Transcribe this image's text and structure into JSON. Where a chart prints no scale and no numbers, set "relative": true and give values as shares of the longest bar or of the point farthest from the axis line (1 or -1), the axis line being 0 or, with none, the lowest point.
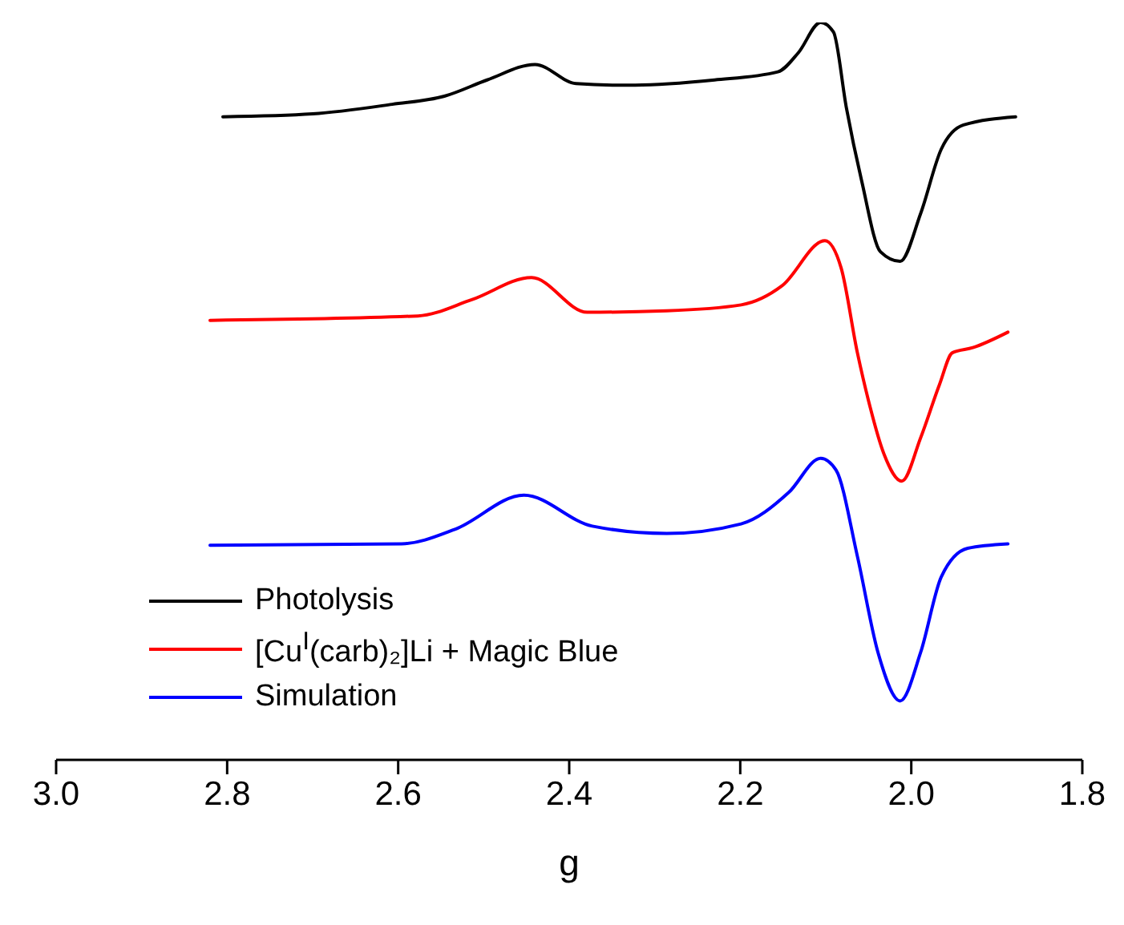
{
  "chart_data": {
    "type": "line",
    "xlabel": "g",
    "relative": true,
    "xlim": [
      3.0,
      1.8
    ],
    "xticks": [
      {
        "value": 3.0,
        "label": "3.0"
      },
      {
        "value": 2.8,
        "label": "2.8"
      },
      {
        "value": 2.6,
        "label": "2.6"
      },
      {
        "value": 2.4,
        "label": "2.4"
      },
      {
        "value": 2.2,
        "label": "2.2"
      },
      {
        "value": 2.0,
        "label": "2.0"
      },
      {
        "value": 1.8,
        "label": "1.8"
      }
    ],
    "legend": "bottom left",
    "grid": false,
    "marker": "none",
    "line_style": "solid",
    "series": [
      {
        "name": "Photolysis",
        "color": "#000000",
        "x": [
          2.805,
          2.7,
          2.607,
          2.546,
          2.496,
          2.44,
          2.392,
          2.342,
          2.323,
          2.23,
          2.156,
          2.132,
          2.106,
          2.091,
          2.076,
          2.058,
          2.036,
          2.013,
          1.989,
          1.965,
          1.939,
          1.878
        ],
        "values": [
          0.872,
          0.876,
          0.889,
          0.9,
          0.922,
          0.943,
          0.917,
          0.915,
          0.915,
          0.922,
          0.933,
          0.959,
          1,
          0.987,
          0.885,
          0.785,
          0.689,
          0.676,
          0.741,
          0.828,
          0.861,
          0.872
        ]
      },
      {
        "name": "[Cu$^{I}$(carb)₂]Li + Magic Blue",
        "color": "#ff0000",
        "x": [
          2.82,
          2.577,
          2.514,
          2.444,
          2.379,
          2.286,
          2.199,
          2.151,
          2.101,
          2.082,
          2.063,
          2.05,
          2.032,
          2.011,
          1.989,
          1.967,
          1.952,
          1.928,
          1.887
        ],
        "values": [
          0.596,
          0.602,
          0.624,
          0.654,
          0.607,
          0.609,
          0.617,
          0.643,
          0.704,
          0.667,
          0.552,
          0.487,
          0.415,
          0.378,
          0.437,
          0.509,
          0.552,
          0.559,
          0.58
        ]
      },
      {
        "name": "Simulation",
        "color": "#0000ff",
        "x": [
          2.82,
          2.596,
          2.533,
          2.453,
          2.373,
          2.286,
          2.199,
          2.143,
          2.106,
          2.088,
          2.063,
          2.039,
          2.013,
          1.989,
          1.965,
          1.934,
          1.887
        ],
        "values": [
          0.291,
          0.293,
          0.313,
          0.359,
          0.317,
          0.307,
          0.32,
          0.363,
          0.409,
          0.393,
          0.276,
          0.146,
          0.08,
          0.146,
          0.248,
          0.287,
          0.293
        ]
      }
    ]
  }
}
